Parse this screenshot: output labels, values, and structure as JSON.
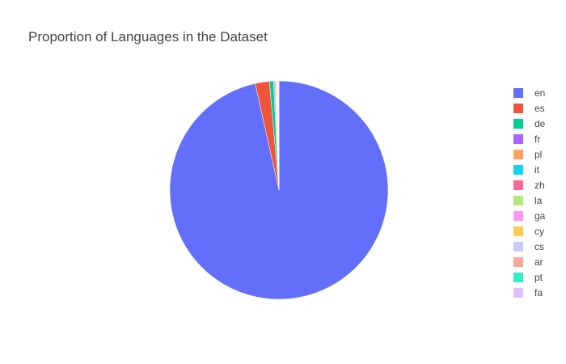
{
  "chart_data": {
    "type": "pie",
    "title": "Proportion of Languages in the Dataset",
    "legend_position": "right",
    "slices": [
      {
        "label": "en",
        "value": 96.5,
        "color": "#636efa"
      },
      {
        "label": "es",
        "value": 2.1,
        "color": "#EF553B"
      },
      {
        "label": "de",
        "value": 0.6,
        "color": "#00cc96"
      },
      {
        "label": "fr",
        "value": 0.15,
        "color": "#ab63fa"
      },
      {
        "label": "pl",
        "value": 0.15,
        "color": "#FFA15A"
      },
      {
        "label": "it",
        "value": 0.1,
        "color": "#19d3f3"
      },
      {
        "label": "zh",
        "value": 0.08,
        "color": "#FF6692"
      },
      {
        "label": "la",
        "value": 0.07,
        "color": "#B6E880"
      },
      {
        "label": "ga",
        "value": 0.06,
        "color": "#FF97FF"
      },
      {
        "label": "cy",
        "value": 0.05,
        "color": "#FECB52"
      },
      {
        "label": "cs",
        "value": 0.04,
        "color": "#c6c9fb"
      },
      {
        "label": "ar",
        "value": 0.04,
        "color": "#f4a898"
      },
      {
        "label": "pt",
        "value": 0.03,
        "color": "#2ef0c4"
      },
      {
        "label": "fa",
        "value": 0.03,
        "color": "#ddc1fc"
      }
    ]
  }
}
